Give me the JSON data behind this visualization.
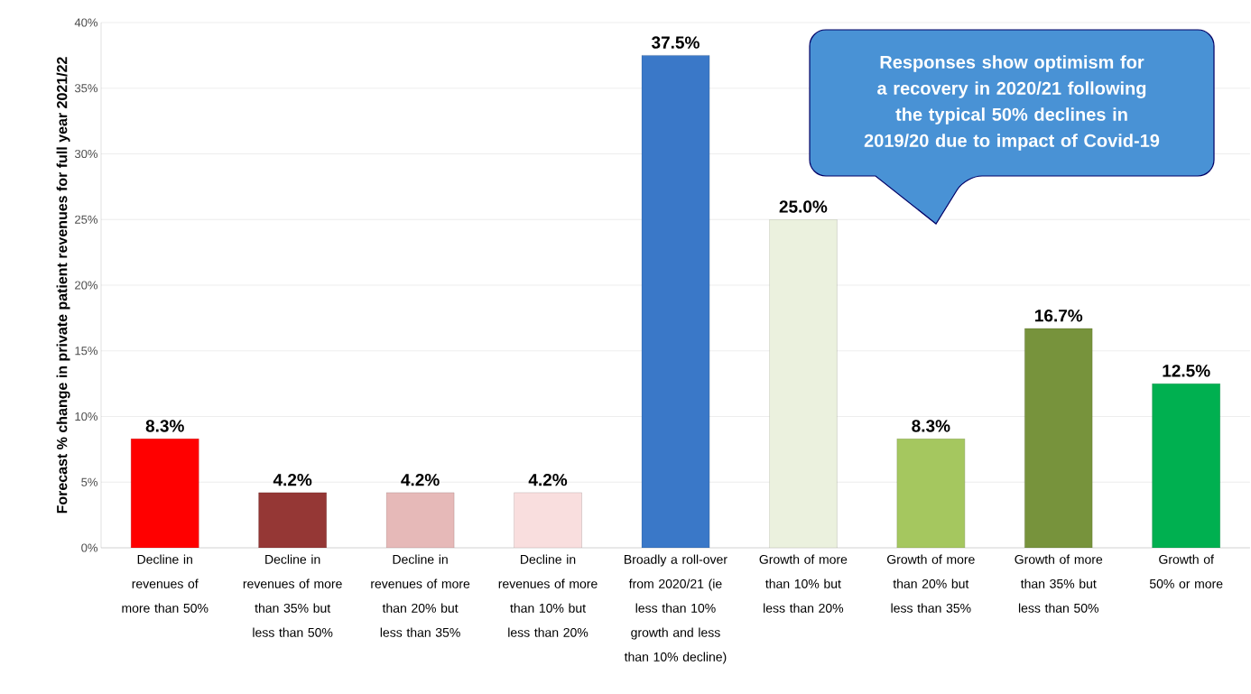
{
  "chart_data": {
    "type": "bar",
    "ylabel": "Forecast % change in private patient revenues for full year 2021/22",
    "categories": [
      "Decline in revenues of more than 50%",
      "Decline in revenues of more than 35% but less than 50%",
      "Decline in revenues of more than 20% but less than 35%",
      "Decline in revenues of more than 10% but less than 20%",
      "Broadly a roll-over from 2020/21 (ie less than 10% growth and less than 10% decline)",
      "Growth of more than 10% but less than 20%",
      "Growth of more than 20% but less than 35%",
      "Growth of more than 35% but less than 50%",
      "Growth of 50% or more"
    ],
    "values": [
      8.3,
      4.2,
      4.2,
      4.2,
      37.5,
      25.0,
      8.3,
      16.7,
      12.5
    ],
    "value_labels": [
      "8.3%",
      "4.2%",
      "4.2%",
      "4.2%",
      "37.5%",
      "25.0%",
      "8.3%",
      "16.7%",
      "12.5%"
    ],
    "colors": [
      "#ff0000",
      "#953735",
      "#e6b9b8",
      "#f9dede",
      "#3a78c8",
      "#ebf1de",
      "#a5c75f",
      "#77933c",
      "#00b050"
    ],
    "ylim": [
      0,
      40
    ],
    "yticks": [
      {
        "value": 0,
        "label": "0%"
      },
      {
        "value": 5,
        "label": "5%"
      },
      {
        "value": 10,
        "label": "10%"
      },
      {
        "value": 15,
        "label": "15%"
      },
      {
        "value": 20,
        "label": "20%"
      },
      {
        "value": 25,
        "label": "25%"
      },
      {
        "value": 30,
        "label": "30%"
      },
      {
        "value": 35,
        "label": "35%"
      },
      {
        "value": 40,
        "label": "40%"
      }
    ],
    "grid": "y",
    "annotations": [
      "Responses show optimism for a recovery in 2020/21 following the typical 50% declines in 2019/20 due to impact of Covid-19"
    ]
  }
}
